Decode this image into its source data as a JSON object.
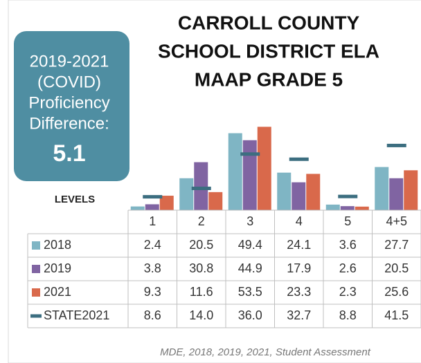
{
  "chart_data": {
    "type": "bar",
    "title_lines": [
      "CARROLL COUNTY",
      "SCHOOL DISTRICT ELA",
      "MAAP GRADE 5"
    ],
    "callout": {
      "lines": [
        "2019-2021",
        "(COVID)",
        "Proficiency",
        "Difference:"
      ],
      "value": "5.1"
    },
    "table_header": "LEVELS",
    "source": "MDE, 2018, 2019, 2021, Student Assessment",
    "categories": [
      "1",
      "2",
      "3",
      "4",
      "5",
      "4+5"
    ],
    "ylim": [
      0,
      55
    ],
    "series": [
      {
        "name": "2018",
        "color": "#7fb5c4",
        "style": "bar",
        "values": [
          2.4,
          20.5,
          49.4,
          24.1,
          3.6,
          27.7
        ]
      },
      {
        "name": "2019",
        "color": "#8064a2",
        "style": "bar",
        "values": [
          3.8,
          30.8,
          44.9,
          17.9,
          2.6,
          20.5
        ]
      },
      {
        "name": "2021",
        "color": "#d9694b",
        "style": "bar",
        "values": [
          9.3,
          11.6,
          53.5,
          23.3,
          2.3,
          25.6
        ]
      },
      {
        "name": "STATE2021",
        "color": "#3c6e80",
        "style": "dash",
        "values": [
          8.6,
          14.0,
          36.0,
          32.7,
          8.8,
          41.5
        ],
        "value_labels": [
          "8.6",
          "14.0",
          "36.0",
          "32.7",
          "8.8",
          "41.5"
        ]
      }
    ]
  }
}
